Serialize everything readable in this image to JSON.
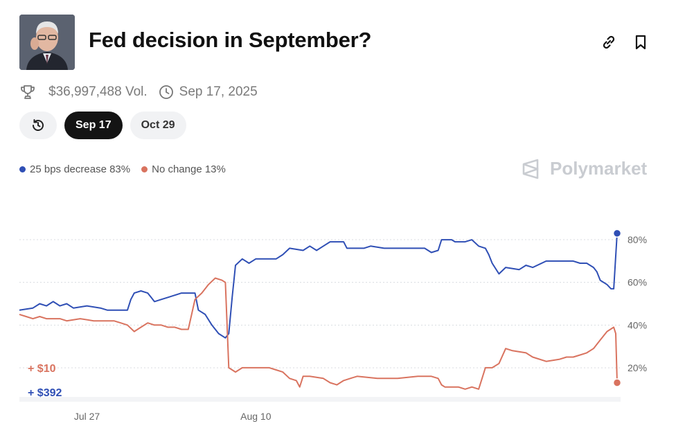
{
  "header": {
    "title": "Fed decision in September?",
    "avatar_icon": "portrait-image",
    "link_icon": "link-icon",
    "bookmark_icon": "bookmark-icon"
  },
  "meta": {
    "volume": "$36,997,488 Vol.",
    "date": "Sep 17, 2025"
  },
  "tabs": [
    {
      "label": "",
      "icon": "history-icon"
    },
    {
      "label": "Sep 17",
      "active": true
    },
    {
      "label": "Oct 29"
    }
  ],
  "legend": [
    {
      "label": "25 bps decrease 83%",
      "color": "#2f4fb5"
    },
    {
      "label": "No change 13%",
      "color": "#d9735f"
    }
  ],
  "brand": "Polymarket",
  "chart_data": {
    "type": "line",
    "x_tick_labels": [
      "Jul 27",
      "Aug 10"
    ],
    "y_tick_labels": [
      "80%",
      "60%",
      "40%",
      "20%"
    ],
    "y_ticks": [
      80,
      60,
      40,
      20
    ],
    "ylim": [
      7,
      93
    ],
    "grid": true,
    "annotations": [
      {
        "text": "+ $10",
        "color": "#d9735f"
      },
      {
        "text": "+ $392",
        "color": "#2f4fb5"
      }
    ],
    "series": [
      {
        "name": "25 bps decrease",
        "color": "#2f4fb5",
        "points": [
          [
            0,
            47
          ],
          [
            2,
            48
          ],
          [
            3,
            50
          ],
          [
            4,
            49
          ],
          [
            5,
            51
          ],
          [
            6,
            49
          ],
          [
            7,
            50
          ],
          [
            8,
            48
          ],
          [
            10,
            49
          ],
          [
            12,
            48
          ],
          [
            13,
            47
          ],
          [
            16,
            47
          ],
          [
            16.5,
            52
          ],
          [
            17,
            55
          ],
          [
            18,
            56
          ],
          [
            19,
            55
          ],
          [
            19.5,
            53
          ],
          [
            20,
            51
          ],
          [
            21,
            52
          ],
          [
            22,
            53
          ],
          [
            23,
            54
          ],
          [
            24,
            55
          ],
          [
            26,
            55
          ],
          [
            26.5,
            47
          ],
          [
            27.5,
            45
          ],
          [
            28.5,
            40
          ],
          [
            29.5,
            36
          ],
          [
            30.5,
            34
          ],
          [
            31,
            36
          ],
          [
            31.5,
            53
          ],
          [
            32,
            68
          ],
          [
            33,
            71
          ],
          [
            34,
            69
          ],
          [
            35,
            71
          ],
          [
            38,
            71
          ],
          [
            39,
            73
          ],
          [
            40,
            76
          ],
          [
            42,
            75
          ],
          [
            43,
            77
          ],
          [
            44,
            75
          ],
          [
            45,
            77
          ],
          [
            46,
            79
          ],
          [
            48,
            79
          ],
          [
            48.5,
            76
          ],
          [
            51,
            76
          ],
          [
            52,
            77
          ],
          [
            54,
            76
          ],
          [
            56,
            76
          ],
          [
            58,
            76
          ],
          [
            60,
            76
          ],
          [
            61,
            74
          ],
          [
            62,
            75
          ],
          [
            62.5,
            80
          ],
          [
            64,
            80
          ],
          [
            64.5,
            79
          ],
          [
            66,
            79
          ],
          [
            67,
            80
          ],
          [
            68,
            77
          ],
          [
            69,
            76
          ],
          [
            69.5,
            73
          ],
          [
            70,
            69
          ],
          [
            71,
            64
          ],
          [
            72,
            67
          ],
          [
            74,
            66
          ],
          [
            75,
            68
          ],
          [
            76,
            67
          ],
          [
            78,
            70
          ],
          [
            80,
            70
          ],
          [
            82,
            70
          ],
          [
            83,
            69
          ],
          [
            84,
            69
          ],
          [
            85,
            67
          ],
          [
            85.5,
            65
          ],
          [
            86,
            61
          ],
          [
            87,
            59
          ],
          [
            87.6,
            57
          ],
          [
            88,
            57
          ],
          [
            88.5,
            83
          ]
        ]
      },
      {
        "name": "No change",
        "color": "#d9735f",
        "points": [
          [
            0,
            45
          ],
          [
            1,
            44
          ],
          [
            2,
            43
          ],
          [
            3,
            44
          ],
          [
            4,
            43
          ],
          [
            6,
            43
          ],
          [
            7,
            42
          ],
          [
            9,
            43
          ],
          [
            11,
            42
          ],
          [
            14,
            42
          ],
          [
            15,
            41
          ],
          [
            16,
            40
          ],
          [
            17,
            37
          ],
          [
            18,
            39
          ],
          [
            19,
            41
          ],
          [
            20,
            40
          ],
          [
            21,
            40
          ],
          [
            22,
            39
          ],
          [
            23,
            39
          ],
          [
            24,
            38
          ],
          [
            25,
            38
          ],
          [
            25.5,
            45
          ],
          [
            26,
            52
          ],
          [
            27,
            55
          ],
          [
            28,
            59
          ],
          [
            29,
            62
          ],
          [
            30,
            61
          ],
          [
            30.5,
            60
          ],
          [
            31,
            20
          ],
          [
            32,
            18
          ],
          [
            33,
            20
          ],
          [
            35,
            20
          ],
          [
            37,
            20
          ],
          [
            38,
            19
          ],
          [
            39,
            18
          ],
          [
            40,
            15
          ],
          [
            41,
            14
          ],
          [
            41.5,
            11
          ],
          [
            42,
            16
          ],
          [
            43,
            16
          ],
          [
            45,
            15
          ],
          [
            46,
            13
          ],
          [
            47,
            12
          ],
          [
            48,
            14
          ],
          [
            49,
            15
          ],
          [
            50,
            16
          ],
          [
            53,
            15
          ],
          [
            56,
            15
          ],
          [
            59,
            16
          ],
          [
            61,
            16
          ],
          [
            62,
            15
          ],
          [
            62.5,
            12
          ],
          [
            63,
            11
          ],
          [
            64,
            11
          ],
          [
            65,
            11
          ],
          [
            66,
            10
          ],
          [
            67,
            11
          ],
          [
            68,
            10
          ],
          [
            68.5,
            15
          ],
          [
            69,
            20
          ],
          [
            70,
            20
          ],
          [
            71,
            22
          ],
          [
            72,
            29
          ],
          [
            73,
            28
          ],
          [
            75,
            27
          ],
          [
            76,
            25
          ],
          [
            78,
            23
          ],
          [
            80,
            24
          ],
          [
            81,
            25
          ],
          [
            82,
            25
          ],
          [
            83,
            26
          ],
          [
            84,
            27
          ],
          [
            85,
            29
          ],
          [
            86,
            33
          ],
          [
            87,
            37
          ],
          [
            88,
            39
          ],
          [
            88.3,
            36
          ],
          [
            88.5,
            13
          ]
        ]
      }
    ]
  }
}
